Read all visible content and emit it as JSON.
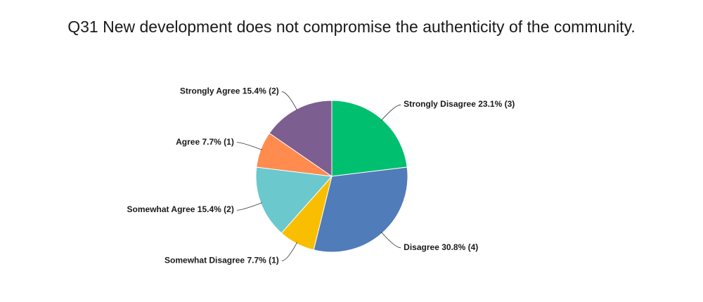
{
  "chart_data": {
    "type": "pie",
    "title": "Q31 New development does not compromise the authenticity of the community.",
    "categories": [
      "Strongly Disagree",
      "Disagree",
      "Somewhat Disagree",
      "Somewhat Agree",
      "Agree",
      "Strongly Agree"
    ],
    "values": [
      23.1,
      30.8,
      7.7,
      15.4,
      7.7,
      15.4
    ],
    "value_labels": [
      "23.1% (3)",
      "30.8% (4)",
      "7.7% (1)",
      "15.4% (2)",
      "7.7% (1)",
      "15.4% (2)"
    ],
    "colors": [
      "#00bf6f",
      "#507cb9",
      "#f9be00",
      "#6bc8cd",
      "#ff8b4f",
      "#7d5e90"
    ]
  }
}
